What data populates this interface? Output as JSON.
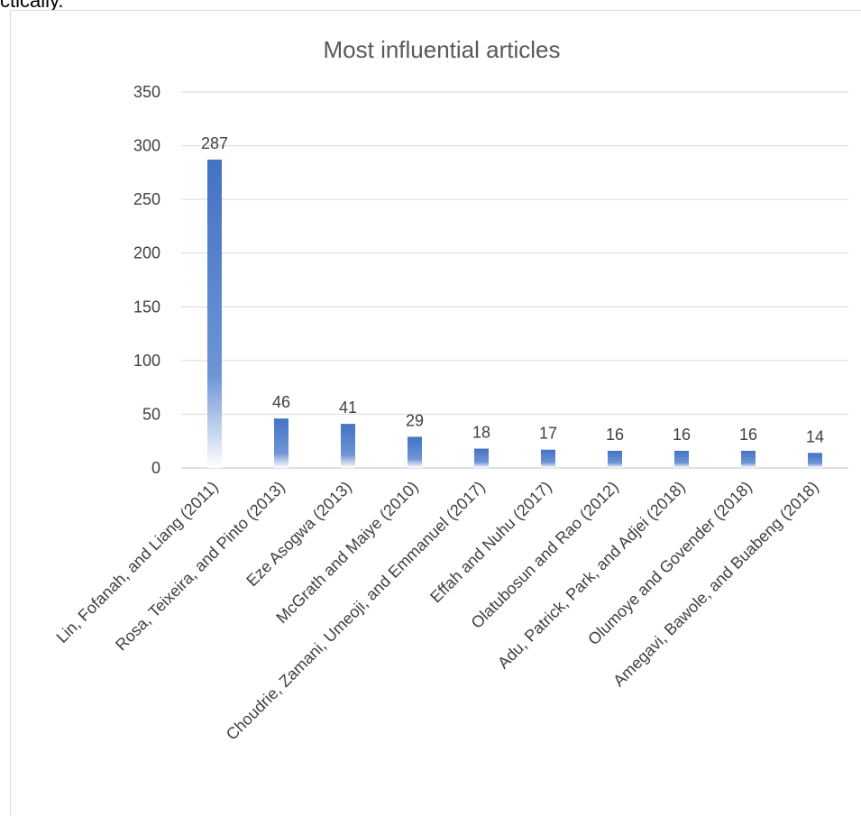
{
  "page": {
    "cut_text": "ctically."
  },
  "chart_data": {
    "type": "bar",
    "title": "Most influential articles",
    "xlabel": "",
    "ylabel": "",
    "categories": [
      "Lin, Fofanah, and Liang (2011)",
      "Rosa, Teixeira, and Pinto (2013)",
      "Eze Asogwa (2013)",
      "McGrath and Maiye (2010)",
      "Choudrie, Zamani, Umeoji, and Emmanuel (2017)",
      "Effah and Nuhu (2017)",
      "Olatubosun and Rao (2012)",
      "Adu, Patrick, Park, and Adjei (2018)",
      "Olumoye and Govender (2018)",
      "Amegavi, Bawole, and Buabeng (2018)"
    ],
    "values": [
      287,
      46,
      41,
      29,
      18,
      17,
      16,
      16,
      16,
      14
    ],
    "data_labels": [
      "287",
      "46",
      "41",
      "29",
      "18",
      "17",
      "16",
      "16",
      "16",
      "14"
    ],
    "ylim": [
      0,
      350
    ],
    "yticks": [
      0,
      50,
      100,
      150,
      200,
      250,
      300,
      350
    ],
    "ytick_labels": [
      "0",
      "50",
      "100",
      "150",
      "200",
      "250",
      "300",
      "350"
    ],
    "grid": true,
    "legend": "none",
    "bar_fill": "gradient",
    "colors": {
      "bar_top": "#4472c4",
      "bar_bottom": "#ffffff",
      "gridline": "#d9d9d9",
      "axis": "#bfbfbf",
      "text": "#404040",
      "title": "#595959"
    }
  }
}
